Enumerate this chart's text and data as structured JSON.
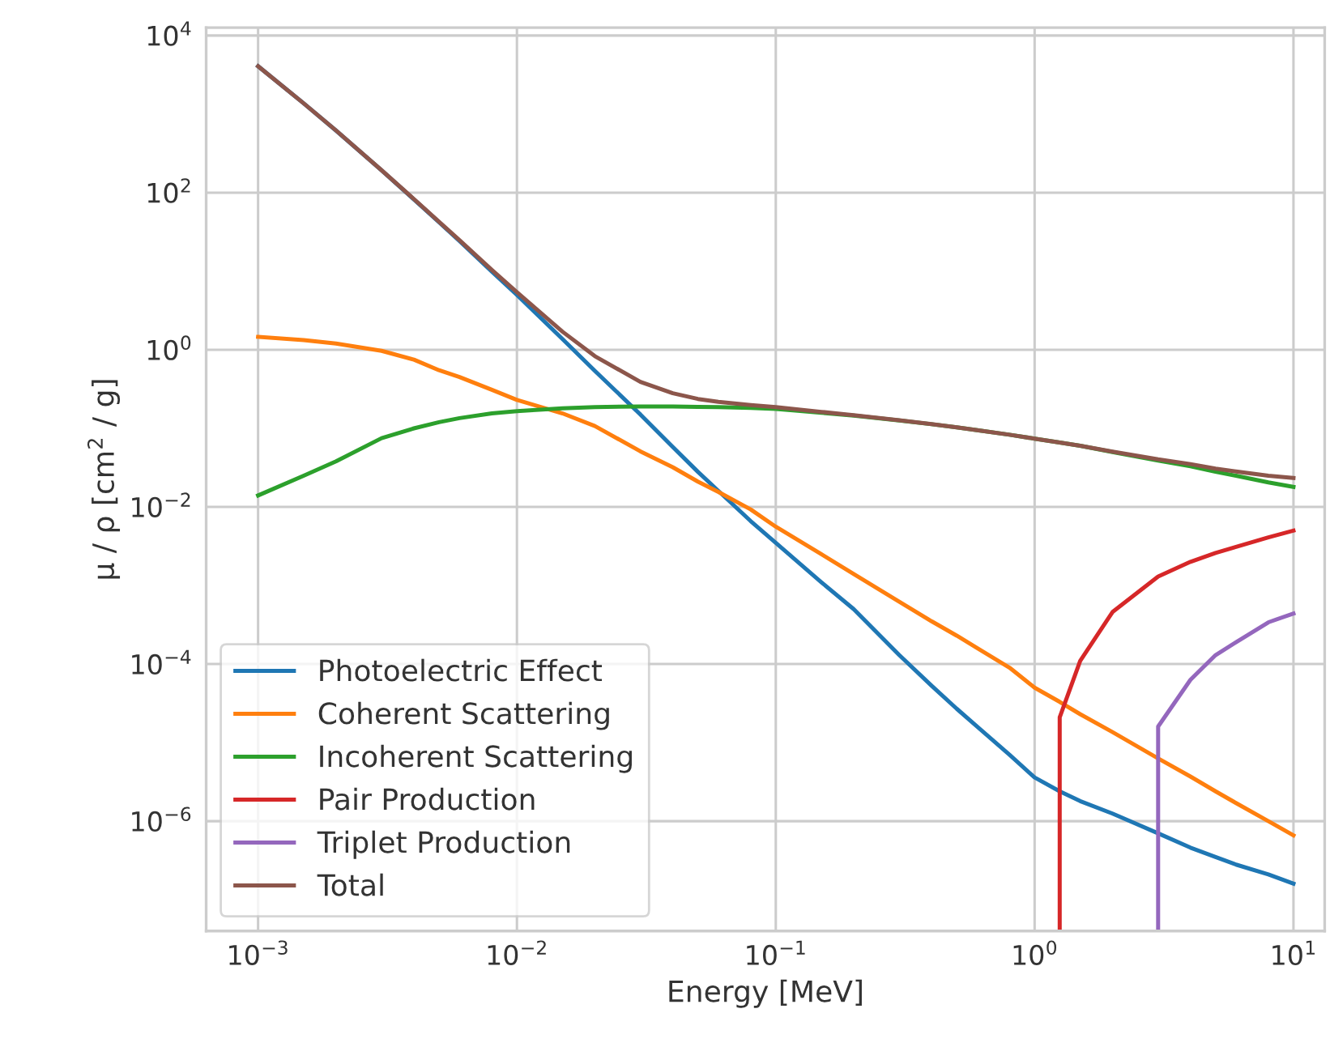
{
  "chart_data": {
    "type": "line",
    "xlabel": "Energy [MeV]",
    "ylabel": "μ / ρ [cm$^{2}$ / g]",
    "log": "xy",
    "grid": true,
    "legend": "bottom left",
    "marker": "none",
    "line_style": "solid",
    "xlim": [
      0.00063,
      13.2
    ],
    "ylim": [
      4e-08,
      12600
    ],
    "xticks": [
      {
        "value": 0.001,
        "label": "10$^{−3}$"
      },
      {
        "value": 0.01,
        "label": "10$^{−2}$"
      },
      {
        "value": 0.1,
        "label": "10$^{−1}$"
      },
      {
        "value": 1,
        "label": "10$^{0}$"
      },
      {
        "value": 10,
        "label": "10$^{1}$"
      }
    ],
    "yticks": [
      {
        "value": 1e-06,
        "label": "10$^{−6}$"
      },
      {
        "value": 0.0001,
        "label": "10$^{−4}$"
      },
      {
        "value": 0.01,
        "label": "10$^{−2}$"
      },
      {
        "value": 1,
        "label": "10$^{0}$"
      },
      {
        "value": 100,
        "label": "10$^{2}$"
      },
      {
        "value": 10000,
        "label": "10$^{4}$"
      }
    ],
    "x": [
      0.001,
      0.0015,
      0.002,
      0.003,
      0.004,
      0.005,
      0.006,
      0.008,
      0.01,
      0.015,
      0.02,
      0.03,
      0.04,
      0.05,
      0.06,
      0.08,
      0.1,
      0.15,
      0.2,
      0.3,
      0.4,
      0.5,
      0.6,
      0.8,
      1,
      1.25,
      1.5,
      2,
      3,
      4,
      5,
      6,
      8,
      10
    ],
    "series": [
      {
        "name": "Photoelectric Effect",
        "color": "#1f77b4",
        "values": [
          4070,
          1370,
          617,
          192,
          82,
          42,
          24.2,
          9.9,
          5.0,
          1.37,
          0.54,
          0.15,
          0.058,
          0.028,
          0.016,
          0.0066,
          0.0035,
          0.0011,
          0.0005,
          0.00013,
          5.3e-05,
          2.7e-05,
          1.6e-05,
          7e-06,
          3.6e-06,
          2.4e-06,
          1.8e-06,
          1.25e-06,
          7e-07,
          4.6e-07,
          3.5e-07,
          2.8e-07,
          2.1e-07,
          1.6e-07
        ]
      },
      {
        "name": "Coherent Scattering",
        "color": "#ff7f0e",
        "values": [
          1.46,
          1.33,
          1.2,
          0.97,
          0.75,
          0.55,
          0.45,
          0.31,
          0.23,
          0.155,
          0.107,
          0.051,
          0.032,
          0.021,
          0.0155,
          0.0093,
          0.0056,
          0.0025,
          0.0014,
          0.00062,
          0.00035,
          0.00023,
          0.00016,
          9e-05,
          5e-05,
          3.3e-05,
          2.3e-05,
          1.36e-05,
          6.3e-06,
          3.7e-06,
          2.4e-06,
          1.7e-06,
          1e-06,
          6.6e-07
        ]
      },
      {
        "name": "Incoherent Scattering",
        "color": "#2ca02c",
        "values": [
          0.014,
          0.025,
          0.038,
          0.075,
          0.1,
          0.12,
          0.135,
          0.155,
          0.166,
          0.18,
          0.187,
          0.19,
          0.19,
          0.188,
          0.186,
          0.182,
          0.177,
          0.158,
          0.145,
          0.126,
          0.113,
          0.103,
          0.095,
          0.083,
          0.074,
          0.066,
          0.06,
          0.05,
          0.039,
          0.033,
          0.028,
          0.025,
          0.0205,
          0.018
        ]
      },
      {
        "name": "Pair Production",
        "color": "#d62728",
        "x": [
          1.25,
          1.25,
          1.5,
          2,
          3,
          4,
          5,
          6,
          8,
          10
        ],
        "values": [
          4e-08,
          2.1e-05,
          0.00011,
          0.00046,
          0.0013,
          0.002,
          0.0026,
          0.0031,
          0.0041,
          0.005
        ]
      },
      {
        "name": "Triplet Production",
        "color": "#9467bd",
        "x": [
          3,
          3,
          4,
          5,
          6,
          8,
          10
        ],
        "values": [
          4e-08,
          1.6e-05,
          6.3e-05,
          0.00013,
          0.00019,
          0.00034,
          0.00044
        ]
      },
      {
        "name": "Total",
        "color": "#8c564b",
        "values": [
          4070,
          1371,
          618,
          193,
          82.9,
          42.7,
          24.8,
          10.4,
          5.4,
          1.7,
          0.83,
          0.39,
          0.28,
          0.237,
          0.218,
          0.198,
          0.186,
          0.162,
          0.147,
          0.127,
          0.1134,
          0.103,
          0.095,
          0.083,
          0.074,
          0.066,
          0.0601,
          0.0505,
          0.0403,
          0.0351,
          0.0307,
          0.0283,
          0.0249,
          0.0234
        ]
      }
    ]
  }
}
